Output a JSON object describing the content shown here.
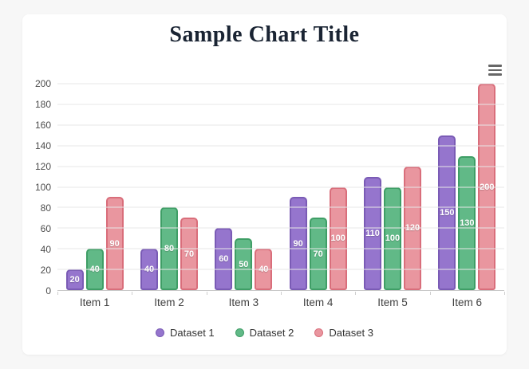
{
  "page": {
    "background_color": "#f7f7f7",
    "card_background_color": "#ffffff"
  },
  "chart": {
    "title_color": "#1a2433",
    "grid_color": "#e7e7e7",
    "axis_line_color": "#c9c9c9",
    "tick_label_color": "#4c4c4c",
    "menu_icon": "hamburger-menu-icon"
  },
  "chart_data": {
    "type": "bar",
    "title": "Sample Chart Title",
    "categories": [
      "Item 1",
      "Item 2",
      "Item 3",
      "Item 4",
      "Item 5",
      "Item 6"
    ],
    "series": [
      {
        "name": "Dataset 1",
        "values": [
          20,
          40,
          60,
          90,
          110,
          150
        ],
        "fill": "#9575cd",
        "border": "#7a5bb5"
      },
      {
        "name": "Dataset 2",
        "values": [
          40,
          80,
          50,
          70,
          100,
          130
        ],
        "fill": "#61b987",
        "border": "#3f9e66"
      },
      {
        "name": "Dataset 3",
        "values": [
          90,
          70,
          40,
          100,
          120,
          200
        ],
        "fill": "#e9969f",
        "border": "#d96e7b"
      }
    ],
    "ylim": [
      0,
      200
    ],
    "yticks": [
      0,
      20,
      40,
      60,
      80,
      100,
      120,
      140,
      160,
      180,
      200
    ],
    "grid": true,
    "data_labels": true,
    "legend_position": "bottom"
  }
}
